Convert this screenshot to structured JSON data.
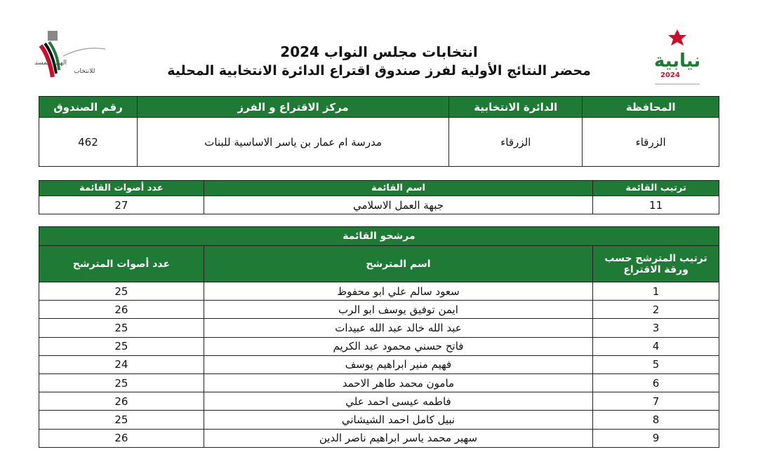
{
  "header": {
    "title": "انتخابات مجلس النواب 2024",
    "subtitle": "محضر النتائج الأولية لفرز صندوق اقتراع الدائرة الانتخابية المحلية",
    "left_logo_text": "الهيئة المستقلة للانتخاب",
    "right_logo_text": "نيابية 2024",
    "green": "#1f7a36"
  },
  "box_info": {
    "headers": [
      "المحافظة",
      "الدائرة الانتخابية",
      "مركز الاقتراع و الفرز",
      "رقم الصندوق"
    ],
    "values": [
      "الزرقاء",
      "الزرقاء",
      "مدرسة ام عمار بن ياسر الاساسية للبنات",
      "462"
    ]
  },
  "list_info": {
    "headers": [
      "ترتيب القائمة",
      "اسم القائمة",
      "عدد أصوات القائمة"
    ],
    "values": [
      "11",
      "جبهة العمل الاسلامي",
      "27"
    ]
  },
  "candidates": {
    "section_title": "مرشحو القائمة",
    "headers": [
      "ترتيب المترشح حسب ورقة الاقتراع",
      "اسم المترشح",
      "عدد أصوات المترشح"
    ],
    "rows": [
      [
        "1",
        "سعود سالم علي ابو محفوظ",
        "25"
      ],
      [
        "2",
        "ايمن توفيق يوسف ابو الرب",
        "26"
      ],
      [
        "3",
        "عبد الله خالد عبد الله عبيدات",
        "25"
      ],
      [
        "4",
        "فاتح حسني محمود عبد الكريم",
        "25"
      ],
      [
        "5",
        "فهيم منير ابراهيم يوسف",
        "24"
      ],
      [
        "6",
        "مامون محمد طاهر الاحمد",
        "25"
      ],
      [
        "7",
        "فاطمه عيسى احمد علي",
        "26"
      ],
      [
        "8",
        "نبيل كامل احمد الشيشاني",
        "25"
      ],
      [
        "9",
        "سهير محمد ياسر ابراهيم ناصر الدين",
        "26"
      ]
    ]
  }
}
